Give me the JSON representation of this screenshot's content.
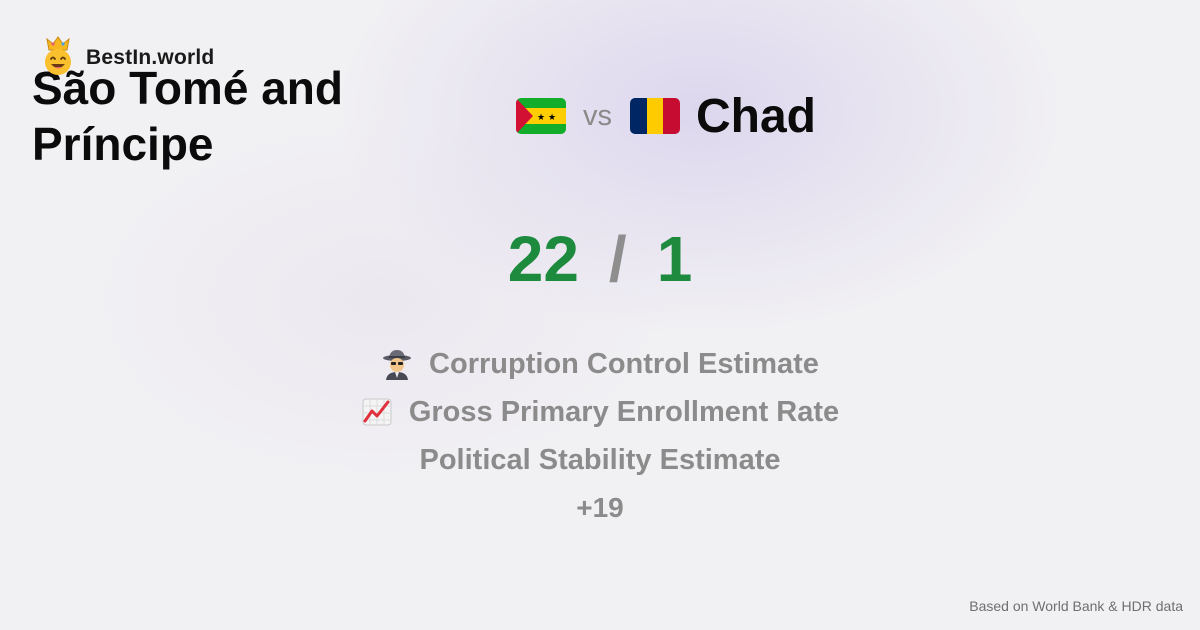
{
  "brand": {
    "name": "BestIn.world",
    "logo_icon": "crowned-smiley-icon"
  },
  "comparison": {
    "left_country": "São Tomé and Príncipe",
    "left_flag": "sao-tome-flag-icon",
    "vs_label": "vs",
    "right_country": "Chad",
    "right_flag": "chad-flag-icon"
  },
  "score": {
    "left": "22",
    "separator": "/",
    "right": "1"
  },
  "metrics": [
    {
      "icon": "spy-icon",
      "label": "Corruption Control Estimate"
    },
    {
      "icon": "chart-increasing-icon",
      "label": "Gross Primary Enrollment Rate"
    },
    {
      "icon": "",
      "label": "Political Stability Estimate"
    }
  ],
  "more_label": "+19",
  "footer": {
    "source": "Based on World Bank & HDR data"
  },
  "colors": {
    "score": "#1d8a3e",
    "muted": "#8b8b8b",
    "background": "#f1f0f3"
  }
}
